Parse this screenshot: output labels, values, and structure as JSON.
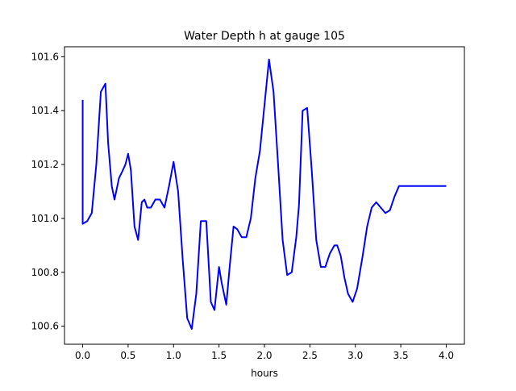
{
  "chart_data": {
    "type": "line",
    "title": "Water Depth h at gauge 105",
    "xlabel": "hours",
    "ylabel": "",
    "xlim": [
      -0.2,
      4.2
    ],
    "ylim": [
      100.533,
      101.637
    ],
    "xticks": [
      0.0,
      0.5,
      1.0,
      1.5,
      2.0,
      2.5,
      3.0,
      3.5,
      4.0
    ],
    "xtick_labels": [
      "0.0",
      "0.5",
      "1.0",
      "1.5",
      "2.0",
      "2.5",
      "3.0",
      "3.5",
      "4.0"
    ],
    "yticks": [
      100.6,
      100.8,
      101.0,
      101.2,
      101.4,
      101.6
    ],
    "ytick_labels": [
      "100.6",
      "100.8",
      "101.0",
      "101.2",
      "101.4",
      "101.6"
    ],
    "grid": false,
    "line_color": "#0000ff",
    "series": [
      {
        "x": [
          0.0,
          0.0,
          0.0,
          0.05,
          0.1,
          0.15,
          0.2,
          0.25,
          0.28,
          0.32,
          0.35,
          0.4,
          0.43,
          0.47,
          0.5,
          0.53,
          0.57,
          0.61,
          0.65,
          0.68,
          0.71,
          0.75,
          0.8,
          0.85,
          0.9,
          0.95,
          1.0,
          1.05,
          1.1,
          1.15,
          1.2,
          1.25,
          1.3,
          1.36,
          1.41,
          1.45,
          1.5,
          1.53,
          1.58,
          1.62,
          1.66,
          1.7,
          1.75,
          1.8,
          1.85,
          1.9,
          1.95,
          2.0,
          2.05,
          2.1,
          2.15,
          2.2,
          2.25,
          2.3,
          2.35,
          2.38,
          2.42,
          2.47,
          2.52,
          2.57,
          2.62,
          2.67,
          2.72,
          2.77,
          2.8,
          2.84,
          2.88,
          2.92,
          2.97,
          3.02,
          3.08,
          3.13,
          3.18,
          3.23,
          3.28,
          3.33,
          3.38,
          3.43,
          3.48,
          3.53,
          3.58,
          3.63,
          3.68,
          3.73,
          3.78,
          3.82,
          3.86,
          3.9,
          3.94,
          3.97,
          4.0
        ],
        "y": [
          101.44,
          100.98,
          100.98,
          100.99,
          101.02,
          101.2,
          101.47,
          101.5,
          101.28,
          101.12,
          101.07,
          101.15,
          101.17,
          101.2,
          101.24,
          101.18,
          100.97,
          100.92,
          101.06,
          101.07,
          101.04,
          101.04,
          101.07,
          101.07,
          101.04,
          101.12,
          101.21,
          101.1,
          100.85,
          100.63,
          100.59,
          100.72,
          100.99,
          100.99,
          100.69,
          100.66,
          100.82,
          100.76,
          100.68,
          100.83,
          100.97,
          100.96,
          100.93,
          100.93,
          101.0,
          101.15,
          101.25,
          101.42,
          101.59,
          101.47,
          101.2,
          100.92,
          100.79,
          100.8,
          100.93,
          101.05,
          101.4,
          101.41,
          101.18,
          100.92,
          100.82,
          100.82,
          100.87,
          100.9,
          100.9,
          100.86,
          100.78,
          100.72,
          100.69,
          100.74,
          100.86,
          100.97,
          101.04,
          101.06,
          101.04,
          101.02,
          101.03,
          101.08,
          101.12,
          101.12,
          101.12,
          101.12,
          101.12,
          101.12,
          101.12,
          101.12,
          101.12,
          101.12,
          101.12,
          101.12,
          101.12
        ]
      }
    ]
  }
}
